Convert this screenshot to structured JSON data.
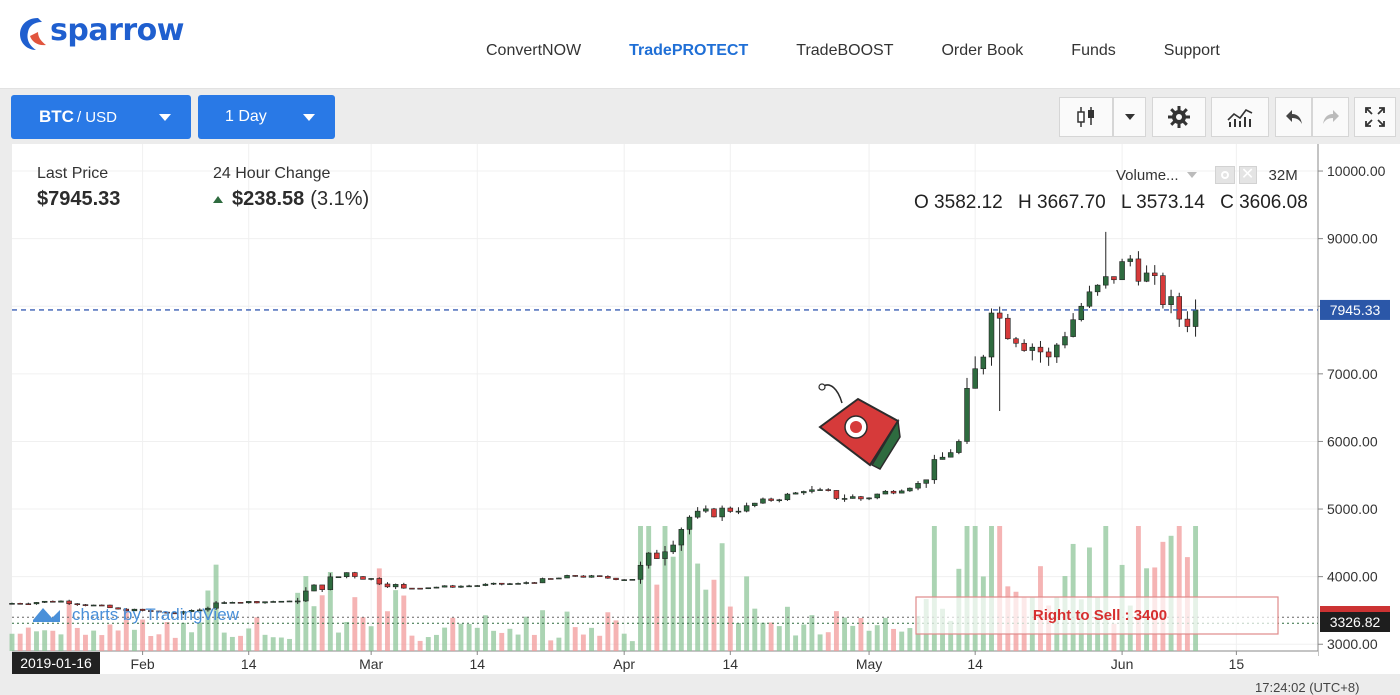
{
  "header": {
    "logo_text": "sparrow",
    "nav": [
      {
        "label": "ConvertNOW",
        "active": false
      },
      {
        "label": "TradePROTECT",
        "active": true
      },
      {
        "label": "TradeBOOST",
        "active": false
      },
      {
        "label": "Order Book",
        "active": false
      },
      {
        "label": "Funds",
        "active": false
      },
      {
        "label": "Support",
        "active": false
      }
    ]
  },
  "toolbar": {
    "pair_base": "BTC",
    "pair_quote": "/ USD",
    "timeframe": "1 Day",
    "icons": [
      "candlestick-icon",
      "chevron-down-icon",
      "gear-icon",
      "indicators-icon",
      "undo-icon",
      "redo-icon",
      "fullscreen-icon"
    ]
  },
  "ticker": {
    "last_price_label": "Last Price",
    "last_price": "$7945.33",
    "change_label": "24 Hour Change",
    "change_value": "$238.58",
    "change_pct": "(3.1%)"
  },
  "ohlc": {
    "o": "O 3582.12",
    "h": "H 3667.70",
    "l": "L 3573.14",
    "c": "C 3606.08"
  },
  "volume": {
    "label": "Volume...",
    "value": "32M"
  },
  "watermark": "charts by TradingView",
  "rts_label": "Right to Sell : 3400",
  "price_tag": "7945.33",
  "rts_tag": "3326.82",
  "date_tag": "2019-01-16",
  "time_display": "17:24:02 (UTC+8)",
  "colors": {
    "up": "#2e6b3f",
    "down": "#d73a3a",
    "accent": "#2979e6",
    "price_line": "#3a5fb5",
    "rts": "#d62f2f"
  },
  "chart_data": {
    "type": "candlestick",
    "y_ticks": [
      "3000.00",
      "4000.00",
      "5000.00",
      "6000.00",
      "7000.00",
      "8000.00",
      "9000.00",
      "10000.00"
    ],
    "ylim": [
      2900,
      10400
    ],
    "x_ticks": [
      {
        "label": "Feb",
        "x": "2019-02-01"
      },
      {
        "label": "14",
        "x": "2019-02-14"
      },
      {
        "label": "Mar",
        "x": "2019-03-01"
      },
      {
        "label": "14",
        "x": "2019-03-14"
      },
      {
        "label": "Apr",
        "x": "2019-04-01"
      },
      {
        "label": "14",
        "x": "2019-04-14"
      },
      {
        "label": "May",
        "x": "2019-05-01"
      },
      {
        "label": "14",
        "x": "2019-05-14"
      },
      {
        "label": "Jun",
        "x": "2019-06-01"
      },
      {
        "label": "15",
        "x": "2019-06-15"
      }
    ],
    "xlim": [
      "2019-01-16",
      "2019-06-25"
    ],
    "last_price": 7945.33,
    "right_to_sell": 3400,
    "candles_weekly": [
      {
        "x": "2019-01-16",
        "o": 3600,
        "h": 3700,
        "l": 3540,
        "c": 3640
      },
      {
        "x": "2019-01-23",
        "o": 3640,
        "h": 3660,
        "l": 3480,
        "c": 3520
      },
      {
        "x": "2019-01-30",
        "o": 3520,
        "h": 3560,
        "l": 3420,
        "c": 3460
      },
      {
        "x": "2019-02-06",
        "o": 3460,
        "h": 3680,
        "l": 3400,
        "c": 3620
      },
      {
        "x": "2019-02-13",
        "o": 3620,
        "h": 3700,
        "l": 3580,
        "c": 3640
      },
      {
        "x": "2019-02-20",
        "o": 3640,
        "h": 4200,
        "l": 3600,
        "c": 4060
      },
      {
        "x": "2019-02-27",
        "o": 4060,
        "h": 4110,
        "l": 3780,
        "c": 3830
      },
      {
        "x": "2019-03-06",
        "o": 3830,
        "h": 3900,
        "l": 3780,
        "c": 3860
      },
      {
        "x": "2019-03-13",
        "o": 3860,
        "h": 3940,
        "l": 3800,
        "c": 3900
      },
      {
        "x": "2019-03-20",
        "o": 3900,
        "h": 4040,
        "l": 3860,
        "c": 4010
      },
      {
        "x": "2019-03-27",
        "o": 4010,
        "h": 4080,
        "l": 3920,
        "c": 3960
      },
      {
        "x": "2019-04-03",
        "o": 3960,
        "h": 5050,
        "l": 3950,
        "c": 4880
      },
      {
        "x": "2019-04-10",
        "o": 4880,
        "h": 5400,
        "l": 4820,
        "c": 5050
      },
      {
        "x": "2019-04-17",
        "o": 5050,
        "h": 5300,
        "l": 5000,
        "c": 5260
      },
      {
        "x": "2019-04-24",
        "o": 5260,
        "h": 5600,
        "l": 5040,
        "c": 5150
      },
      {
        "x": "2019-05-01",
        "o": 5150,
        "h": 5400,
        "l": 5080,
        "c": 5380
      },
      {
        "x": "2019-05-08",
        "o": 5380,
        "h": 6100,
        "l": 5360,
        "c": 6000
      },
      {
        "x": "2019-05-13",
        "o": 6000,
        "h": 8400,
        "l": 6000,
        "c": 7900
      },
      {
        "x": "2019-05-17",
        "o": 7900,
        "h": 8150,
        "l": 6500,
        "c": 7250
      },
      {
        "x": "2019-05-24",
        "o": 7250,
        "h": 8250,
        "l": 7200,
        "c": 8000
      },
      {
        "x": "2019-05-28",
        "o": 8000,
        "h": 9100,
        "l": 7900,
        "c": 8700
      },
      {
        "x": "2019-06-03",
        "o": 8700,
        "h": 8800,
        "l": 7450,
        "c": 7700
      },
      {
        "x": "2019-06-10",
        "o": 7700,
        "h": 8100,
        "l": 7550,
        "c": 7945
      }
    ]
  }
}
